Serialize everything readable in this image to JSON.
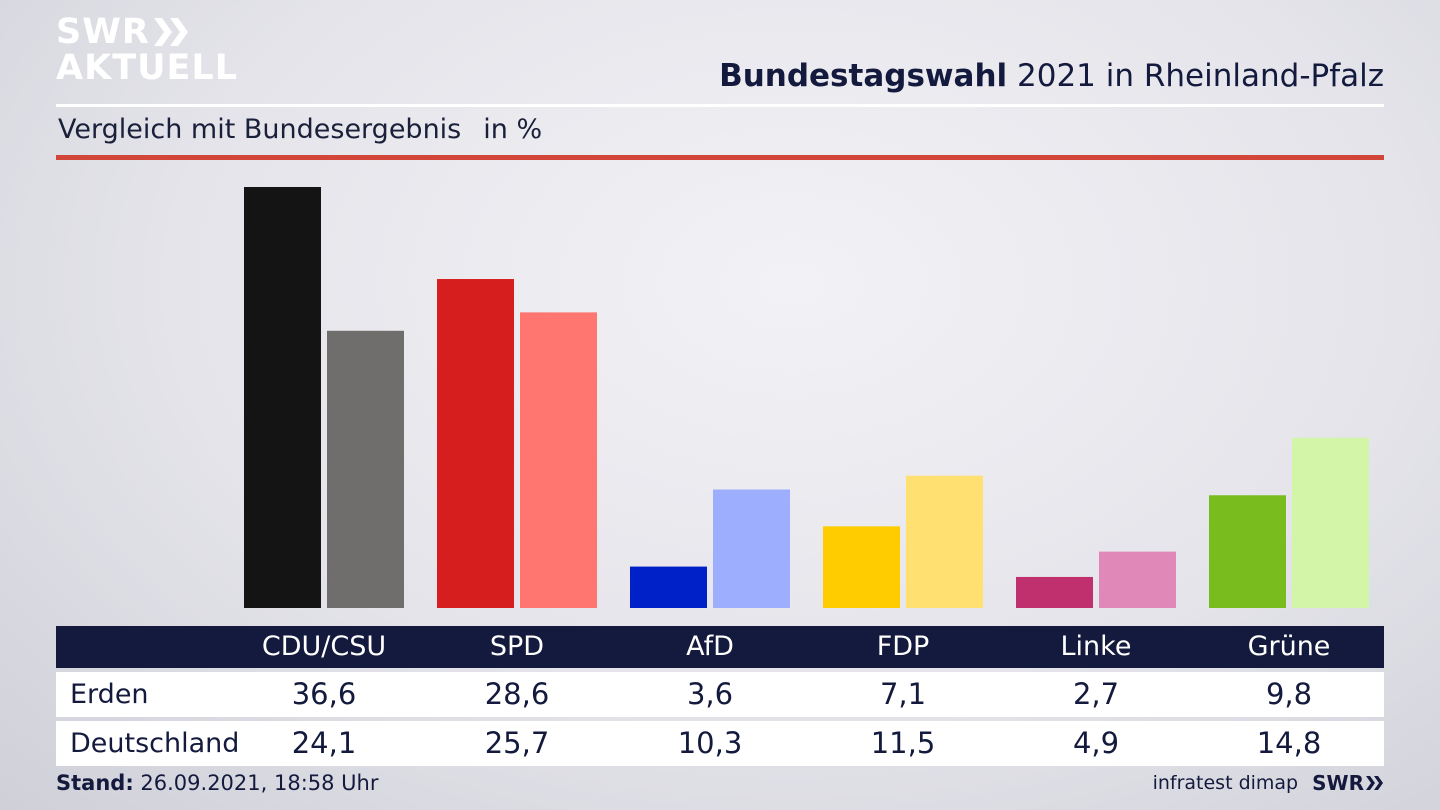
{
  "logo": {
    "line1": "SWR",
    "line2": "AKTUELL"
  },
  "header": {
    "title_bold": "Bundestagswahl",
    "title_rest": " 2021 in Rheinland-Pfalz",
    "subtitle": "Vergleich mit Bundesergebnis",
    "unit": "in %"
  },
  "chart_data": {
    "type": "bar",
    "categories": [
      "CDU/CSU",
      "SPD",
      "AfD",
      "FDP",
      "Linke",
      "Grüne"
    ],
    "series": [
      {
        "name": "Erden",
        "values": [
          36.6,
          28.6,
          3.6,
          7.1,
          2.7,
          9.8
        ],
        "colors": [
          "#141414",
          "#d61e1e",
          "#0020c8",
          "#ffcc00",
          "#c0306f",
          "#78bc1e"
        ]
      },
      {
        "name": "Deutschland",
        "values": [
          24.1,
          25.7,
          10.3,
          11.5,
          4.9,
          14.8
        ],
        "colors": [
          "#706e6c",
          "#ff7570",
          "#9eaeff",
          "#ffe070",
          "#e088b8",
          "#d2f5a8"
        ]
      }
    ],
    "ylim": [
      0,
      36.6
    ],
    "grid": false,
    "legend": "table-below"
  },
  "colors": {
    "header_bg": "#141a3d",
    "accent_rule": "#d2463a"
  },
  "footer": {
    "stand_label": "Stand:",
    "stand_value": " 26.09.2021, 18:58 Uhr",
    "source": "infratest dimap",
    "brand": "SWR"
  }
}
